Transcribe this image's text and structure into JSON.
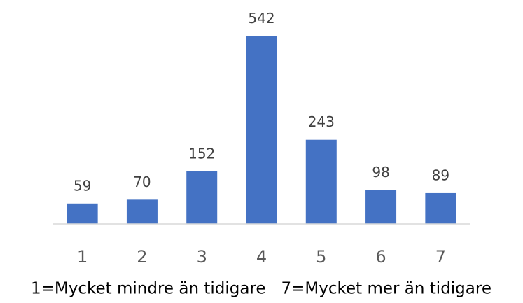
{
  "chart_data": {
    "type": "bar",
    "x_label": "1=Mycket mindre än tidigare   7=Mycket mer än tidigare",
    "categories": [
      "1",
      "2",
      "3",
      "4",
      "5",
      "6",
      "7"
    ],
    "values": [
      59,
      70,
      152,
      542,
      243,
      98,
      89
    ],
    "color": "#4472c4",
    "ylim": [
      0,
      600
    ]
  }
}
